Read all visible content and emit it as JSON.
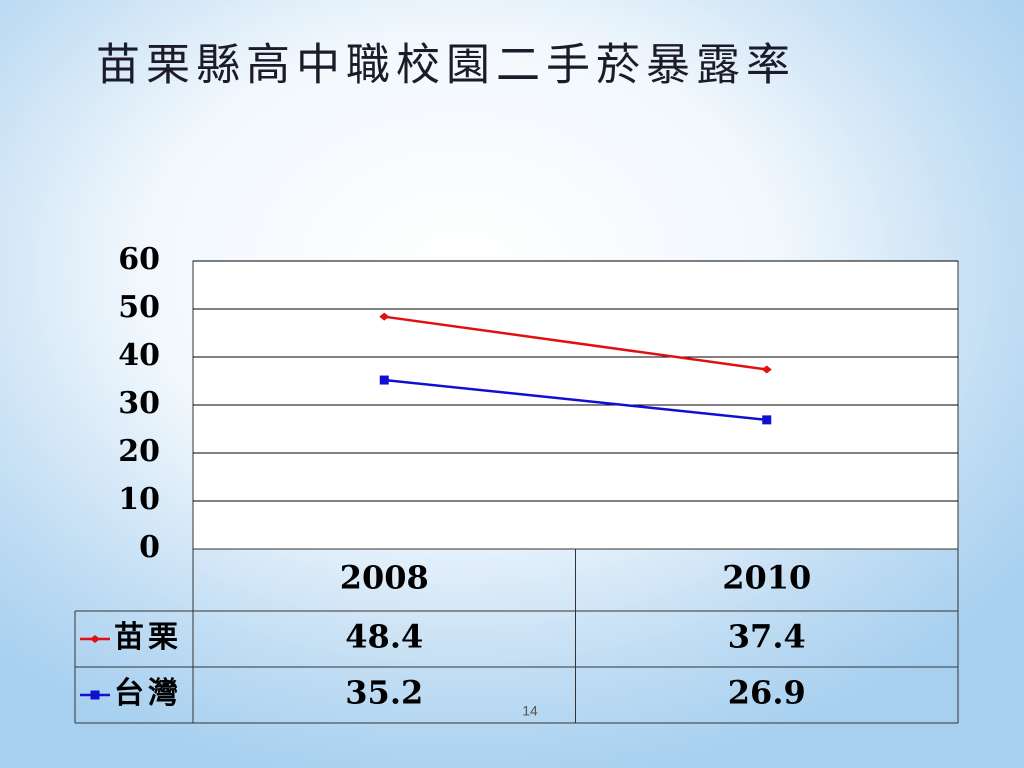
{
  "chart_data": {
    "type": "line",
    "title": "苗栗縣高中職校園二手菸暴露率",
    "categories": [
      "2008",
      "2010"
    ],
    "series": [
      {
        "name": "苗栗",
        "color": "#e01010",
        "values": [
          48.4,
          37.4
        ]
      },
      {
        "name": "台灣",
        "color": "#1010d0",
        "values": [
          35.2,
          26.9
        ]
      }
    ],
    "ylim": [
      0,
      60
    ],
    "yticks": [
      0,
      10,
      20,
      30,
      40,
      50,
      60
    ],
    "grid": true
  },
  "page_number": "14"
}
